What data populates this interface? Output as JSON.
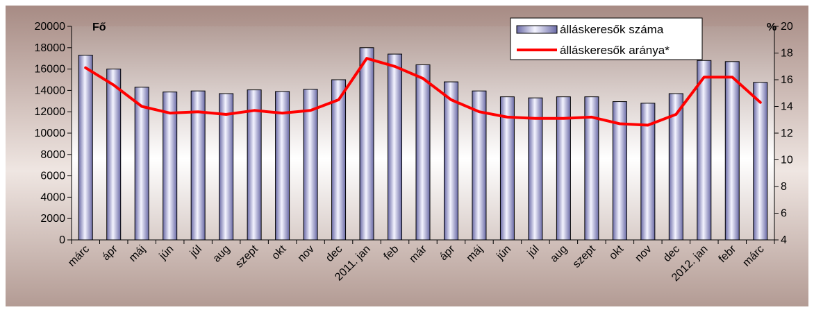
{
  "chart_data": {
    "type": "bar",
    "categories": [
      "márc",
      "ápr",
      "máj",
      "jún",
      "júl",
      "aug",
      "szept",
      "okt",
      "nov",
      "dec",
      "2011. jan",
      "feb",
      "már",
      "ápr",
      "máj",
      "jún",
      "júl",
      "aug",
      "szept",
      "okt",
      "nov",
      "dec",
      "2012. jan",
      "febr",
      "márc"
    ],
    "series": [
      {
        "name": "álláskeresők száma",
        "type": "bar",
        "axis": "left",
        "color": "#8e8ec4",
        "values": [
          17300,
          16000,
          14300,
          13850,
          13950,
          13700,
          14050,
          13900,
          14100,
          15000,
          18000,
          17400,
          16400,
          14800,
          13950,
          13400,
          13300,
          13400,
          13400,
          12950,
          12800,
          13700,
          16800,
          16700,
          14750
        ]
      },
      {
        "name": "álláskeresők aránya*",
        "type": "line",
        "axis": "right",
        "color": "#ff0000",
        "values": [
          16.9,
          15.6,
          14.0,
          13.5,
          13.6,
          13.4,
          13.7,
          13.5,
          13.7,
          14.5,
          17.6,
          17.0,
          16.1,
          14.5,
          13.6,
          13.2,
          13.1,
          13.1,
          13.2,
          12.7,
          12.6,
          13.4,
          16.2,
          16.2,
          14.3
        ]
      }
    ],
    "y_left": {
      "label": "Fő",
      "ylim": [
        0,
        20000
      ],
      "ticks": [
        0,
        2000,
        4000,
        6000,
        8000,
        10000,
        12000,
        14000,
        16000,
        18000,
        20000
      ]
    },
    "y_right": {
      "label": "%",
      "ylim": [
        4,
        20
      ],
      "ticks": [
        4,
        6,
        8,
        10,
        12,
        14,
        16,
        18,
        20
      ]
    },
    "grid": false,
    "legend": "top-right",
    "background_color": "#b49c96"
  }
}
